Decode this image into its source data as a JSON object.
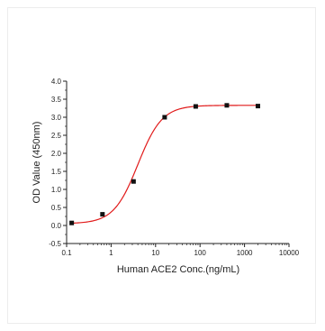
{
  "chart_data": {
    "type": "scatter",
    "xlabel": "Human ACE2 Conc.(ng/mL)",
    "ylabel": "OD Value (450nm)",
    "x_scale": "log",
    "xlim": [
      0.1,
      10000
    ],
    "ylim": [
      -0.5,
      4.0
    ],
    "x_ticks": [
      "0.1",
      "1",
      "10",
      "100",
      "1000",
      "10000"
    ],
    "y_ticks": [
      "-0.5",
      "0.0",
      "0.5",
      "1.0",
      "1.5",
      "2.0",
      "2.5",
      "3.0",
      "3.5",
      "4.0"
    ],
    "grid": false,
    "series": [
      {
        "type": "scatter",
        "x": [
          0.13,
          0.64,
          3.2,
          16,
          80,
          400,
          2000
        ],
        "y": [
          0.07,
          0.31,
          1.22,
          3.0,
          3.3,
          3.33,
          3.31
        ]
      },
      {
        "type": "line",
        "fit": "4PL",
        "bottom": 0.05,
        "top": 3.33,
        "ec50": 4.0,
        "hill": 1.6
      }
    ],
    "colors": {
      "points": "#111111",
      "curve": "#e11a1a",
      "axis": "#222222"
    }
  }
}
